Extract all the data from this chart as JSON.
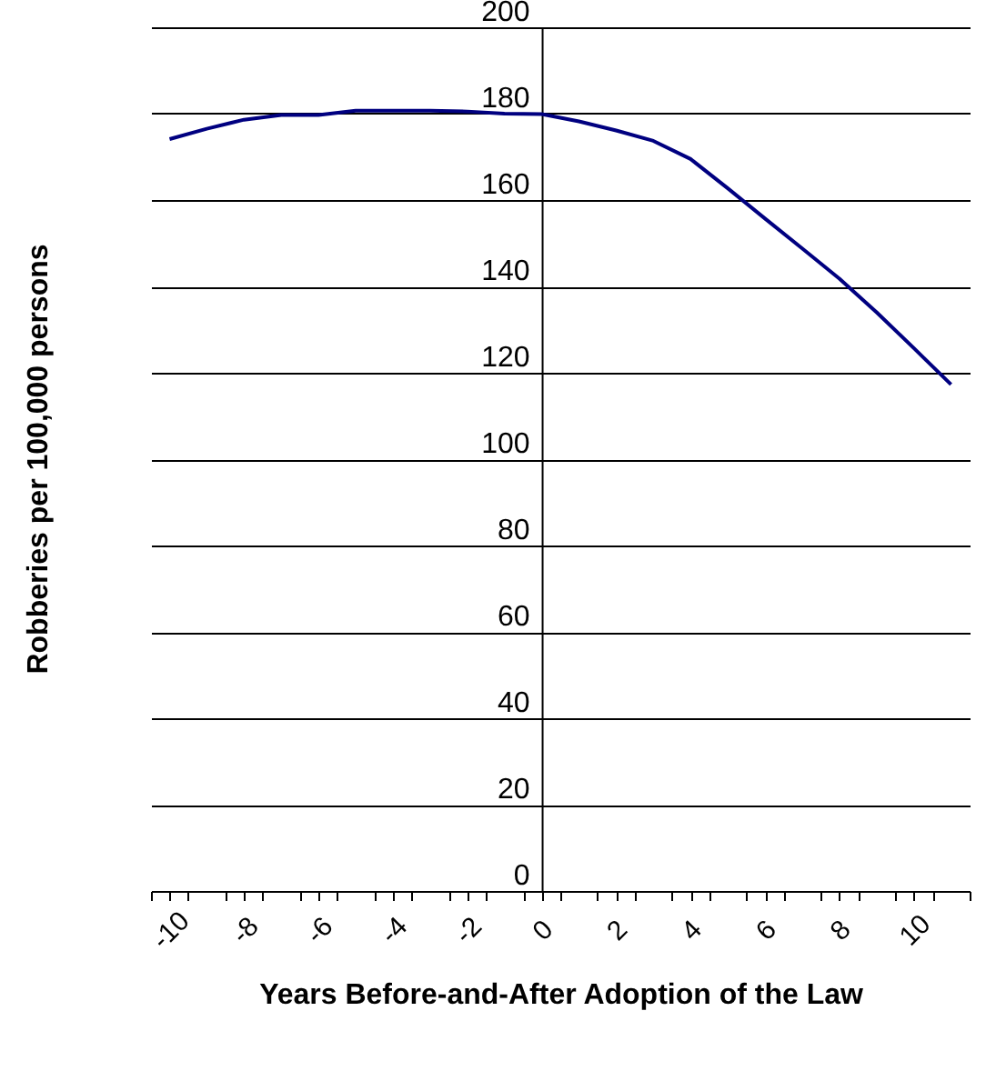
{
  "chart_data": {
    "type": "line",
    "xlabel": "Years Before-and-After Adoption of the Law",
    "ylabel": "Robberies per 100,000 persons",
    "x": [
      -10,
      -9,
      -8,
      -7,
      -6,
      -5,
      -4,
      -3,
      -2,
      -1,
      0,
      1,
      2,
      3,
      4,
      5,
      6,
      7,
      8,
      9,
      10,
      11
    ],
    "series": [
      {
        "color": "#000080",
        "values": [
          174.1,
          176.5,
          178.6,
          179.7,
          179.7,
          180.7,
          180.7,
          180.7,
          180.5,
          180.0,
          179.9,
          178.2,
          176.1,
          173.7,
          169.5,
          162.7,
          155.7,
          148.8,
          141.8,
          134.0,
          125.7,
          117.3
        ]
      }
    ],
    "xlim": [
      -10.5,
      11.5
    ],
    "xticks": [
      {
        "value": -10.5,
        "label": null
      },
      -10,
      {
        "value": -9.5,
        "label": null
      },
      {
        "value": -8.5,
        "label": null
      },
      -8,
      {
        "value": -7.5,
        "label": null
      },
      {
        "value": -6.5,
        "label": null
      },
      -6,
      {
        "value": -5.5,
        "label": null
      },
      {
        "value": -4.5,
        "label": null
      },
      -4,
      {
        "value": -3.5,
        "label": null
      },
      {
        "value": -2.5,
        "label": null
      },
      -2,
      {
        "value": -1.5,
        "label": null
      },
      {
        "value": -0.5,
        "label": null
      },
      0,
      {
        "value": 0.5,
        "label": null
      },
      {
        "value": 1.5,
        "label": null
      },
      2,
      {
        "value": 2.5,
        "label": null
      },
      {
        "value": 3.5,
        "label": null
      },
      4,
      {
        "value": 4.5,
        "label": null
      },
      {
        "value": 5.5,
        "label": null
      },
      6,
      {
        "value": 6.5,
        "label": null
      },
      {
        "value": 7.5,
        "label": null
      },
      8,
      {
        "value": 8.5,
        "label": null
      },
      {
        "value": 9.5,
        "label": null
      },
      10,
      {
        "value": 10.5,
        "label": null
      },
      {
        "value": 11.5,
        "label": null
      }
    ],
    "ylim": [
      0,
      200
    ],
    "yticks": [
      0,
      20,
      40,
      60,
      80,
      100,
      120,
      140,
      160,
      180,
      200
    ],
    "grid": "y",
    "line_style": "solid"
  }
}
